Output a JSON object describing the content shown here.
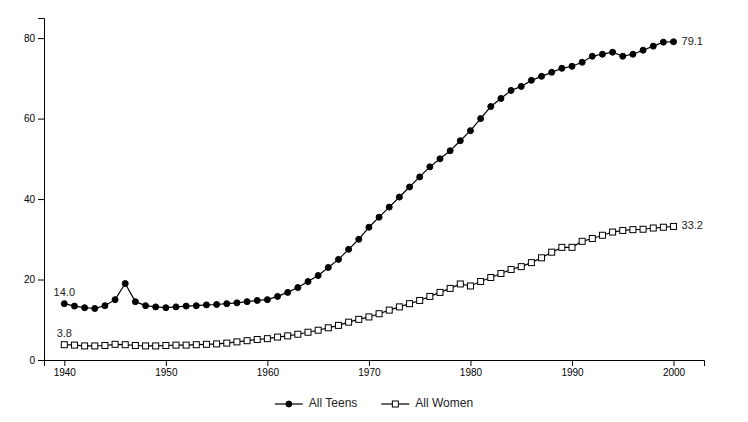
{
  "chart_data": {
    "type": "line",
    "x": [
      1940,
      1941,
      1942,
      1943,
      1944,
      1945,
      1946,
      1947,
      1948,
      1949,
      1950,
      1951,
      1952,
      1953,
      1954,
      1955,
      1956,
      1957,
      1958,
      1959,
      1960,
      1961,
      1962,
      1963,
      1964,
      1965,
      1966,
      1967,
      1968,
      1969,
      1970,
      1971,
      1972,
      1973,
      1974,
      1975,
      1976,
      1977,
      1978,
      1979,
      1980,
      1981,
      1982,
      1983,
      1984,
      1985,
      1986,
      1987,
      1988,
      1989,
      1990,
      1991,
      1992,
      1993,
      1994,
      1995,
      1996,
      1997,
      1998,
      1999,
      2000
    ],
    "series": [
      {
        "name": "All Teens",
        "color": "#000000",
        "marker": "circle",
        "values": [
          14.0,
          13.4,
          13.0,
          12.8,
          13.5,
          15.0,
          19.0,
          14.5,
          13.5,
          13.2,
          13.0,
          13.2,
          13.4,
          13.5,
          13.7,
          13.8,
          14.0,
          14.2,
          14.5,
          14.8,
          15.0,
          15.8,
          16.8,
          18.0,
          19.5,
          21.0,
          23.0,
          25.0,
          27.5,
          30.0,
          33.0,
          35.5,
          38.0,
          40.5,
          43.0,
          45.5,
          48.0,
          50.0,
          52.0,
          54.5,
          57.0,
          60.0,
          63.0,
          65.0,
          67.0,
          68.0,
          69.5,
          70.5,
          71.5,
          72.5,
          73.0,
          74.0,
          75.5,
          76.0,
          76.5,
          75.5,
          76.0,
          77.0,
          78.0,
          79.0,
          79.1
        ]
      },
      {
        "name": "All Women",
        "color": "#000000",
        "marker": "square-open",
        "values": [
          3.8,
          3.7,
          3.5,
          3.5,
          3.6,
          3.9,
          3.8,
          3.6,
          3.5,
          3.5,
          3.6,
          3.7,
          3.7,
          3.8,
          3.9,
          4.0,
          4.2,
          4.5,
          4.8,
          5.1,
          5.3,
          5.7,
          6.0,
          6.4,
          6.9,
          7.4,
          8.0,
          8.6,
          9.4,
          10.1,
          10.7,
          11.5,
          12.4,
          13.2,
          14.0,
          14.8,
          15.8,
          16.8,
          17.8,
          18.9,
          18.4,
          19.5,
          20.5,
          21.5,
          22.5,
          23.2,
          24.2,
          25.4,
          26.8,
          28.0,
          28.0,
          29.5,
          30.2,
          31.0,
          31.8,
          32.2,
          32.4,
          32.5,
          32.8,
          33.0,
          33.2
        ]
      }
    ],
    "xlim": [
      1938,
      2003
    ],
    "xticks": [
      1940,
      1950,
      1960,
      1970,
      1980,
      1990,
      2000
    ],
    "ylim": [
      0,
      85
    ],
    "yticks": [
      0,
      20,
      40,
      60,
      80
    ],
    "grid": false,
    "legend": "bottom",
    "annotations": [
      {
        "text": "79.1",
        "x": 2000,
        "y": 79.1
      },
      {
        "text": "33.2",
        "x": 2000,
        "y": 33.2
      },
      {
        "text": "14.0",
        "x": 1940,
        "y": 14.0
      },
      {
        "text": "3.8",
        "x": 1940,
        "y": 3.8
      }
    ]
  }
}
